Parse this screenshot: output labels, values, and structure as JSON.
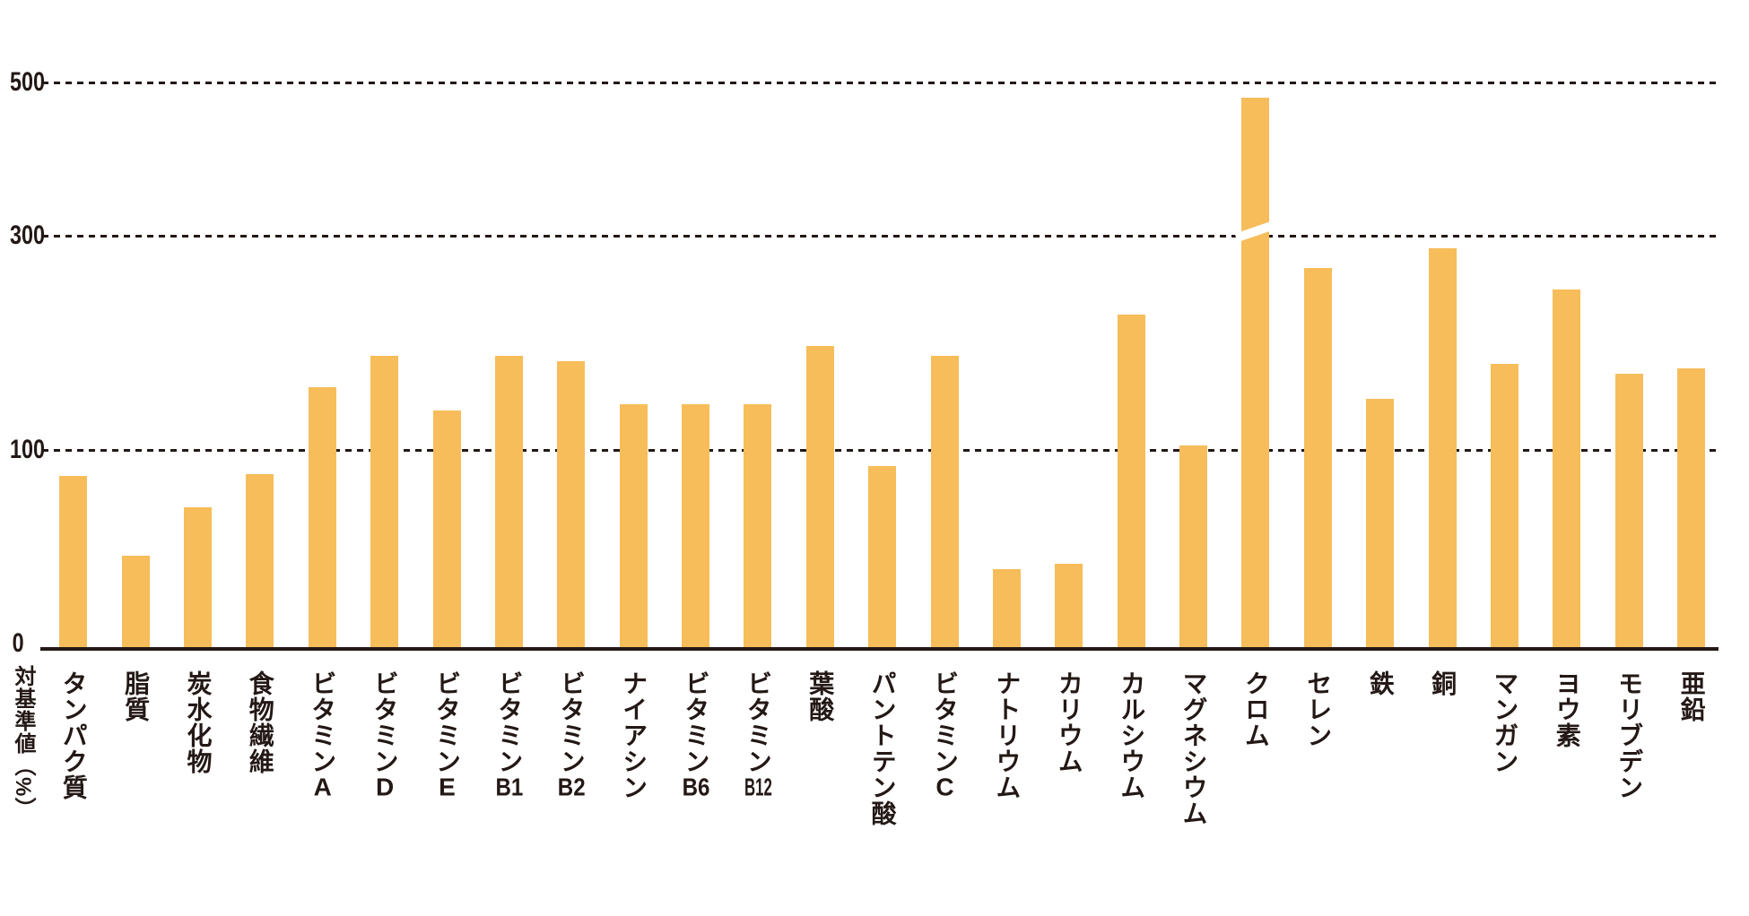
{
  "chart_data": {
    "type": "bar",
    "title": "",
    "ylabel": "対基準値（%）",
    "yticks": [
      0,
      100,
      300,
      500
    ],
    "ytick_labels": [
      "0",
      "100",
      "300",
      "500"
    ],
    "nonlinear_axis": true,
    "grid": "horizontal dotted lines at 100, 300, 500",
    "legend": null,
    "bar_color": "#F6BD5A",
    "axis_color": "#231815",
    "break_bar": "クロム",
    "break_note": "white diagonal break mark across the クロム bar near the 300 line (bar exceeds scale)",
    "categories": [
      "タンパク質",
      "脂質",
      "炭水化物",
      "食物繊維",
      "ビタミンA",
      "ビタミンD",
      "ビタミンE",
      "ビタミンB1",
      "ビタミンB2",
      "ナイアシン",
      "ビタミンB6",
      "ビタミンB12",
      "葉酸",
      "パントテン酸",
      "ビタミンC",
      "ナトリウム",
      "カリウム",
      "カルシウム",
      "マグネシウム",
      "クロム",
      "セレン",
      "鉄",
      "銅",
      "マンガン",
      "ヨウ素",
      "モリブデン",
      "亜鉛"
    ],
    "values": [
      87,
      47,
      71,
      88,
      159,
      188,
      137,
      188,
      183,
      143,
      143,
      143,
      197,
      92,
      188,
      40,
      43,
      226,
      104,
      480,
      270,
      148,
      288,
      180,
      250,
      171,
      176
    ]
  }
}
